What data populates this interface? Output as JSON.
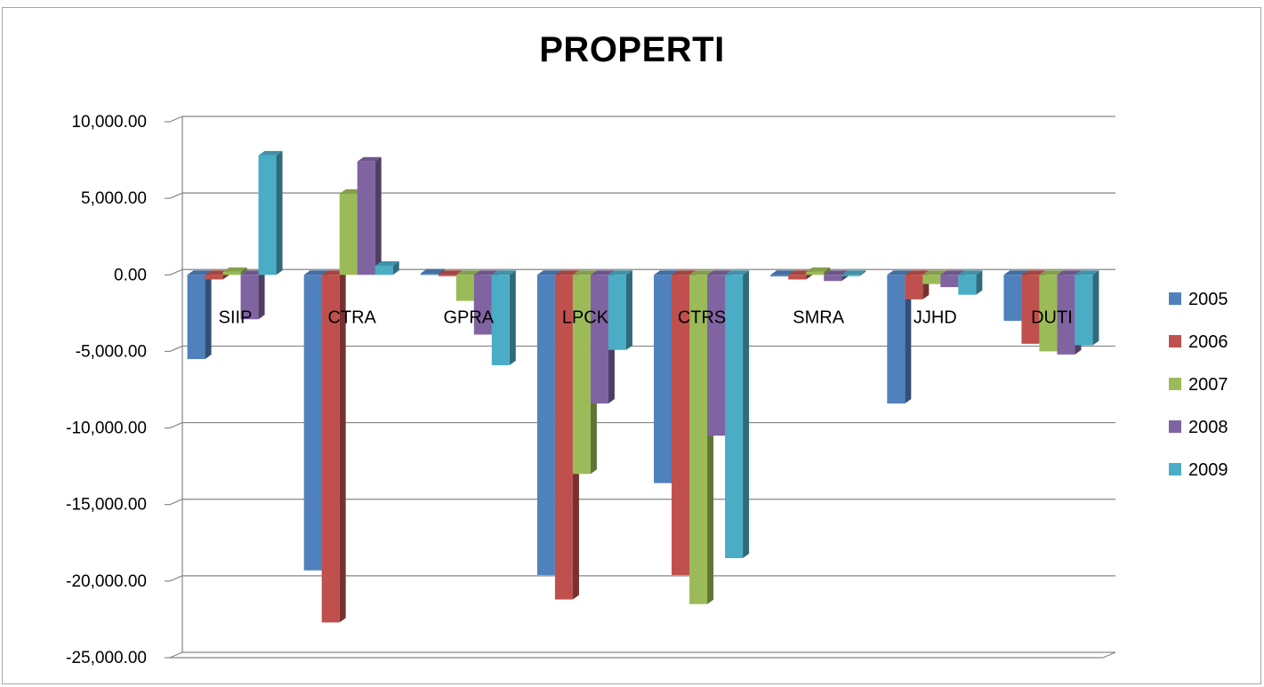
{
  "chart_data": {
    "type": "bar",
    "title": "PROPERTI",
    "categories": [
      "SIIP",
      "CTRA",
      "GPRA",
      "LPCK",
      "CTRS",
      "SMRA",
      "JJHD",
      "DUTI"
    ],
    "series": [
      {
        "name": "2005",
        "color": "#4f81bd",
        "values": [
          -5500,
          -19300,
          100,
          -19600,
          -13600,
          -100,
          -8400,
          -3000
        ]
      },
      {
        "name": "2006",
        "color": "#c0504d",
        "values": [
          -300,
          -22700,
          0,
          -21200,
          -19600,
          -300,
          -1600,
          -4500
        ]
      },
      {
        "name": "2007",
        "color": "#9bbb59",
        "values": [
          200,
          5300,
          -1700,
          -13000,
          -21500,
          200,
          -600,
          -5000
        ]
      },
      {
        "name": "2008",
        "color": "#8064a2",
        "values": [
          -2900,
          7400,
          -3900,
          -8400,
          -10500,
          -400,
          -800,
          -5200
        ]
      },
      {
        "name": "2009",
        "color": "#4bacc6",
        "values": [
          7800,
          600,
          -5900,
          -4900,
          -18500,
          0,
          -1300,
          -4600
        ]
      }
    ],
    "y_ticks": [
      "10,000.00",
      "5,000.00",
      "0.00",
      "-5,000.00",
      "-10,000.00",
      "-15,000.00",
      "-20,000.00",
      "-25,000.00"
    ],
    "ylim": [
      -25000,
      10000
    ],
    "grid": true,
    "legend_position": "right"
  }
}
